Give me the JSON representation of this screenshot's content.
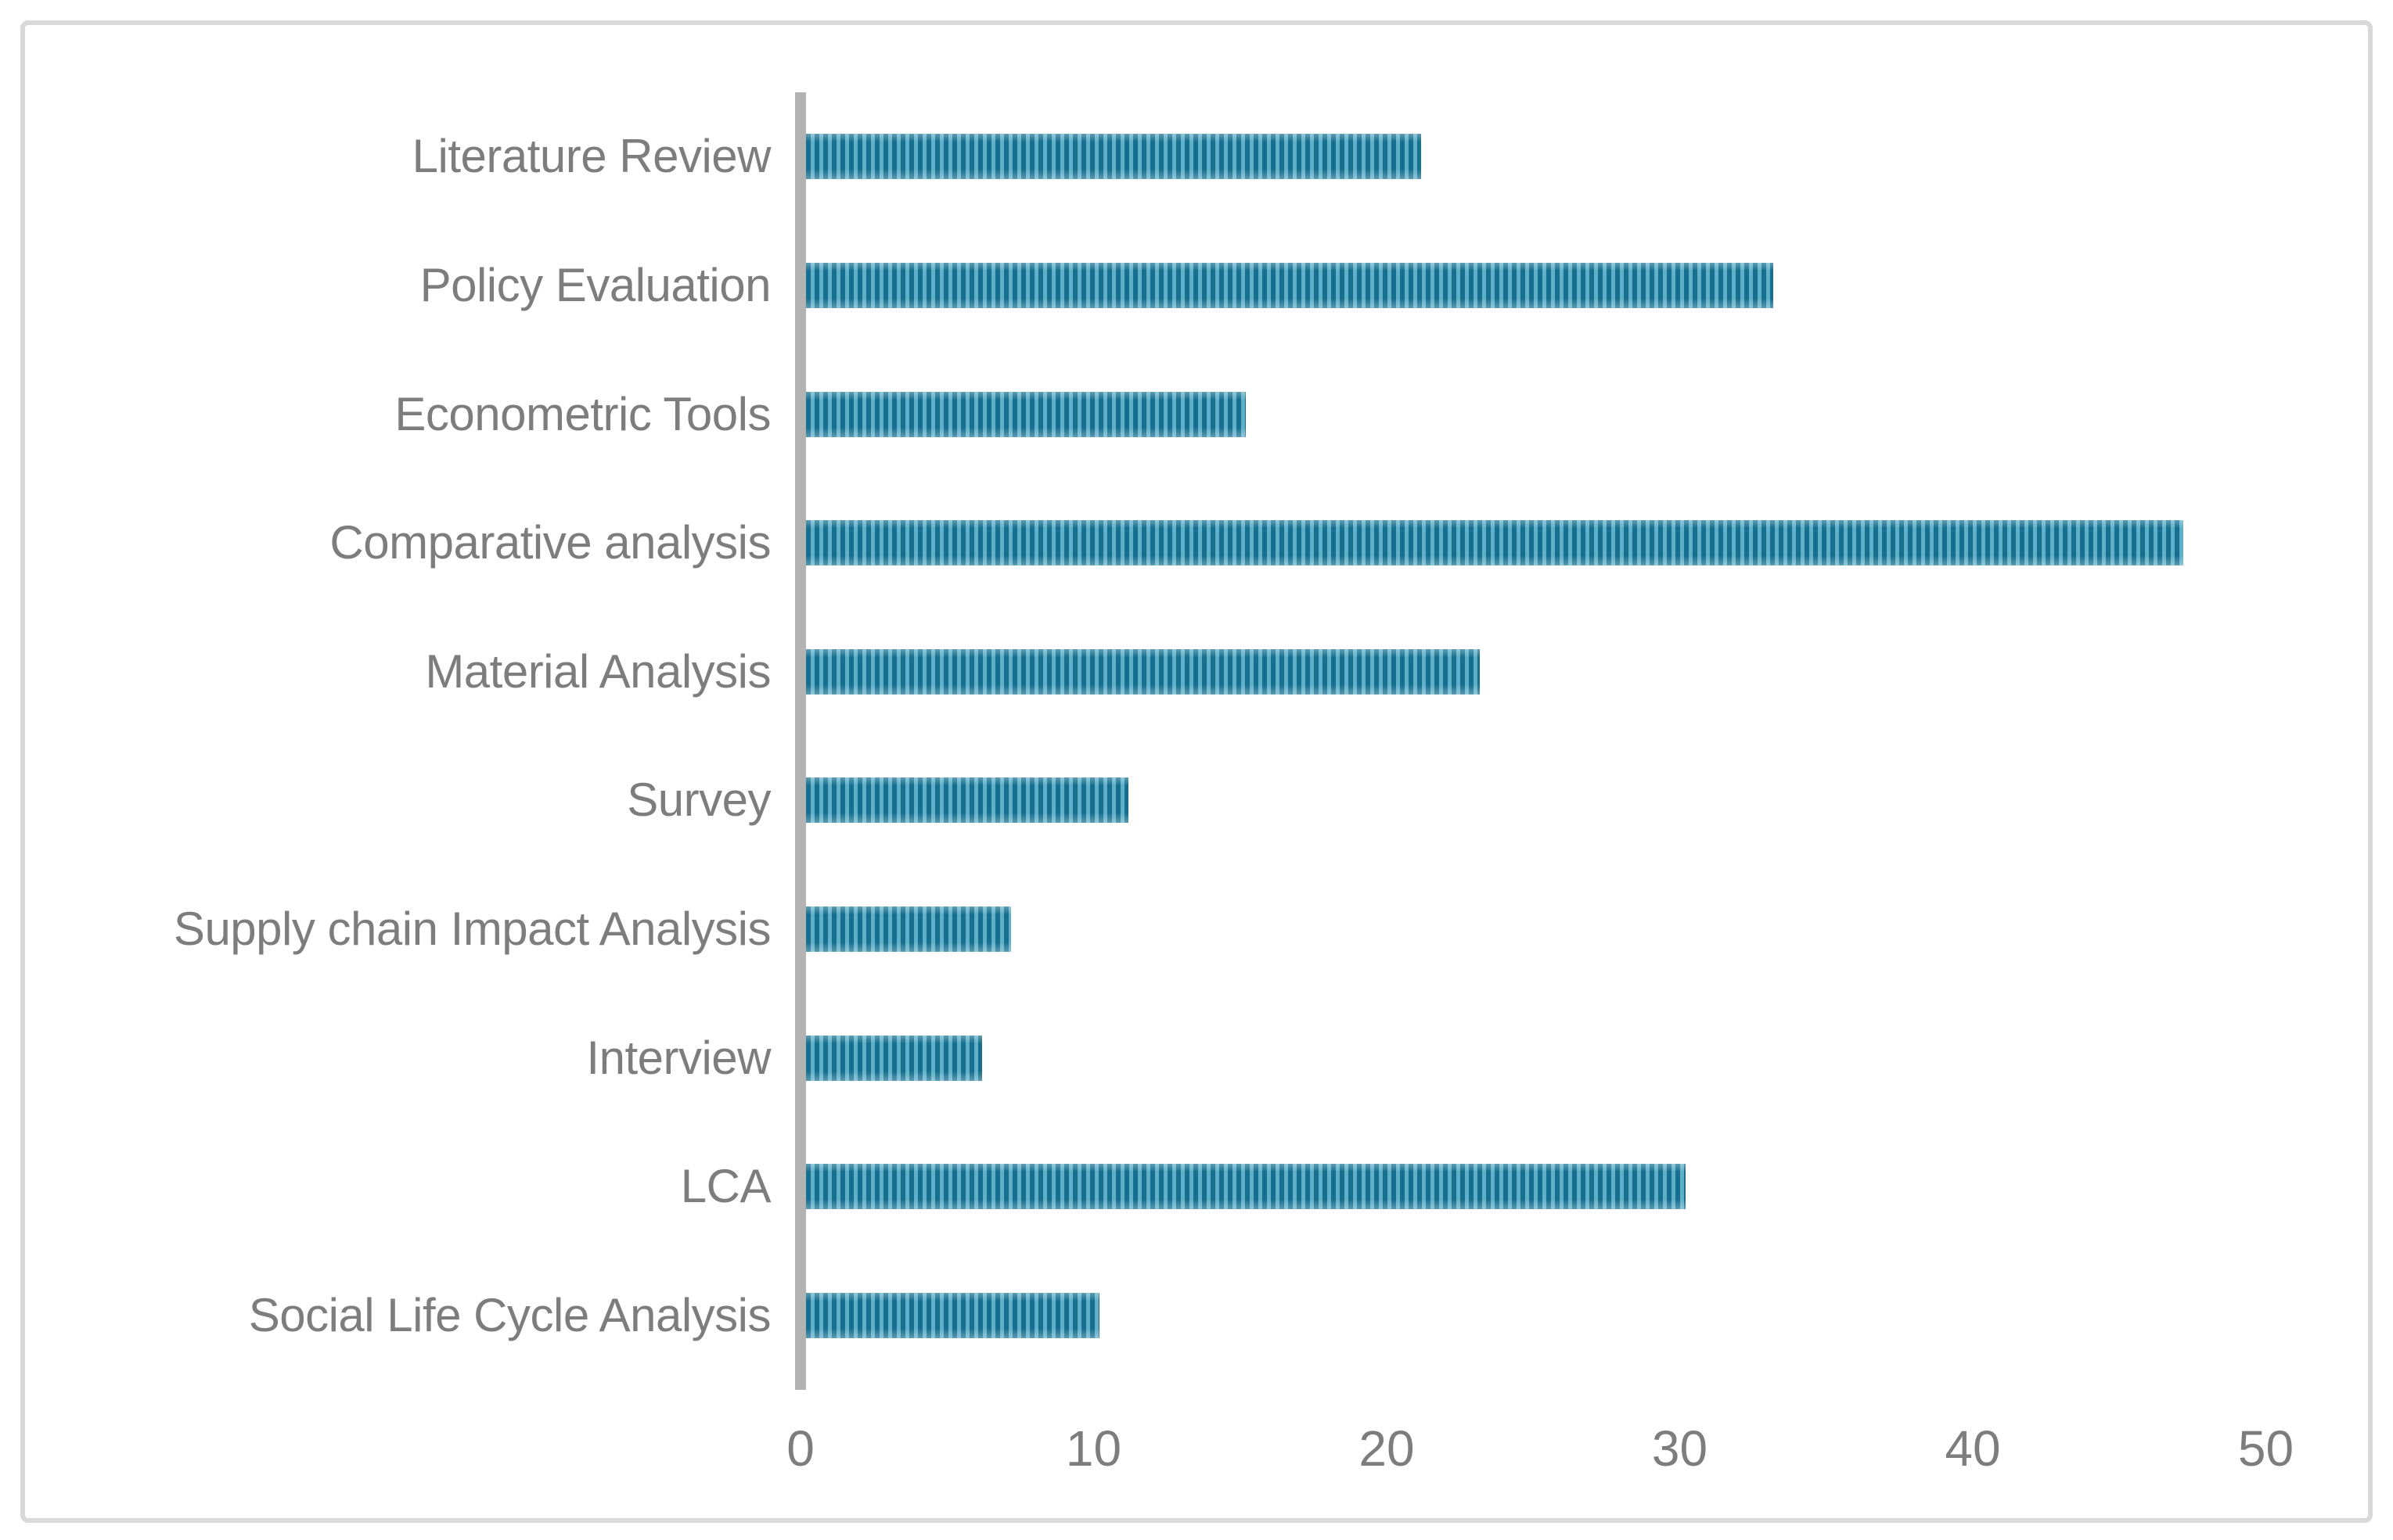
{
  "chart_data": {
    "type": "bar",
    "orientation": "horizontal",
    "title": "",
    "xlabel": "",
    "ylabel": "",
    "categories": [
      "Literature Review",
      "Policy Evaluation",
      "Econometric Tools",
      "Comparative analysis",
      "Material Analysis",
      "Survey",
      "Supply chain Impact Analysis",
      "Interview",
      "LCA",
      "Social Life Cycle Analysis"
    ],
    "values": [
      21,
      33,
      15,
      47,
      23,
      11,
      7,
      6,
      30,
      10
    ],
    "xlim": [
      0,
      50
    ],
    "x_ticks": [
      "0",
      "10",
      "20",
      "30",
      "40",
      "50"
    ],
    "grid": false,
    "legend": false,
    "bar_pattern": "vertical-stripes"
  },
  "colors": {
    "stripe_dark": "#156f8e",
    "stripe_light": "#5fafc8",
    "axis_line": "#b3b3b3",
    "text": "#7d7d7d",
    "frame_border": "#d9d9d9",
    "background": "#ffffff"
  }
}
